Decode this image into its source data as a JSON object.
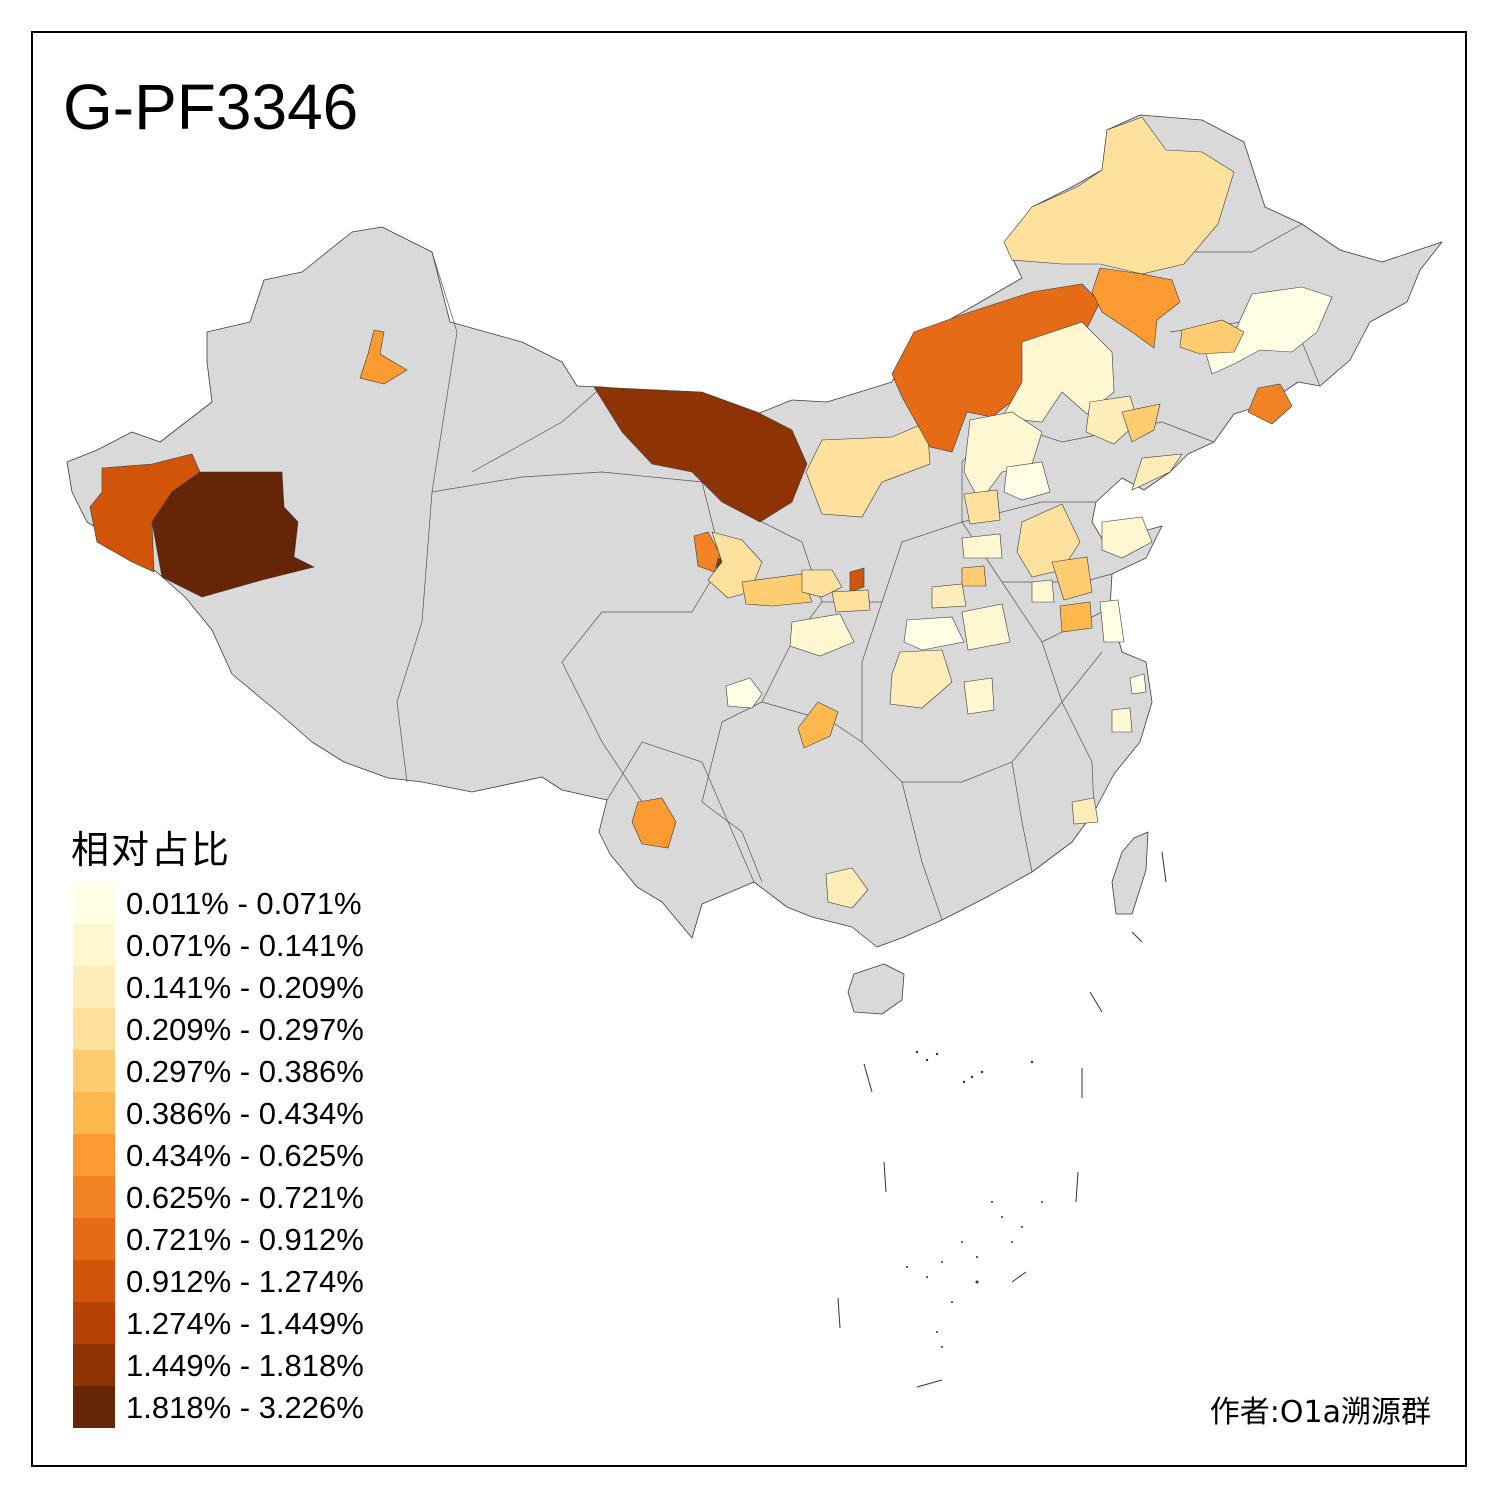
{
  "map": {
    "title": "G-PF3346",
    "legend": {
      "title": "相对占比",
      "classes": [
        {
          "label": "0.011% - 0.071%",
          "color": "#ffffe5"
        },
        {
          "label": "0.071% - 0.141%",
          "color": "#fff6d2"
        },
        {
          "label": "0.141% - 0.209%",
          "color": "#feedb8"
        },
        {
          "label": "0.209% - 0.297%",
          "color": "#fee19d"
        },
        {
          "label": "0.297% - 0.386%",
          "color": "#fecd72"
        },
        {
          "label": "0.386% - 0.434%",
          "color": "#feb84d"
        },
        {
          "label": "0.434% - 0.625%",
          "color": "#fb9b31"
        },
        {
          "label": "0.625% - 0.721%",
          "color": "#f28224"
        },
        {
          "label": "0.721% - 0.912%",
          "color": "#e56b16"
        },
        {
          "label": "0.912% - 1.274%",
          "color": "#d05508"
        },
        {
          "label": "1.274% - 1.449%",
          "color": "#b54305"
        },
        {
          "label": "1.449% - 1.818%",
          "color": "#8e3404"
        },
        {
          "label": "1.818% - 3.226%",
          "color": "#662506"
        }
      ]
    },
    "author": "作者:O1a溯源群",
    "base_color": "#d9d9d9"
  }
}
